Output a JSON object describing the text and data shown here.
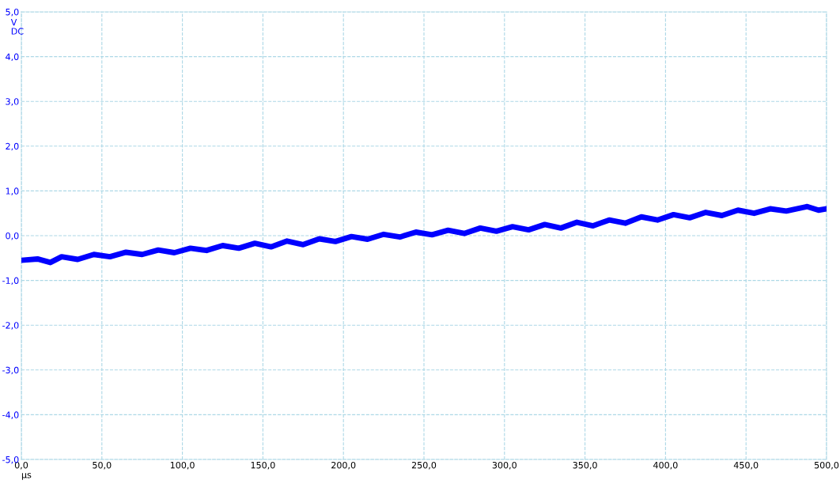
{
  "chart_data": {
    "type": "line",
    "xlabel": "µs",
    "ylabel": "V",
    "annotations": [
      "DC"
    ],
    "x": [
      0,
      10,
      18,
      25,
      35,
      45,
      55,
      65,
      75,
      85,
      95,
      105,
      115,
      125,
      135,
      145,
      155,
      165,
      175,
      185,
      195,
      205,
      215,
      225,
      235,
      245,
      255,
      265,
      275,
      285,
      295,
      305,
      315,
      325,
      335,
      345,
      355,
      365,
      375,
      385,
      395,
      405,
      415,
      425,
      435,
      445,
      455,
      465,
      475,
      488,
      495,
      500
    ],
    "series": [
      {
        "color": "#0000ff",
        "values": [
          -0.55,
          -0.52,
          -0.6,
          -0.47,
          -0.53,
          -0.42,
          -0.47,
          -0.37,
          -0.42,
          -0.32,
          -0.38,
          -0.28,
          -0.33,
          -0.22,
          -0.28,
          -0.17,
          -0.25,
          -0.12,
          -0.2,
          -0.07,
          -0.13,
          -0.02,
          -0.08,
          0.03,
          -0.03,
          0.08,
          0.02,
          0.12,
          0.05,
          0.17,
          0.1,
          0.2,
          0.13,
          0.25,
          0.17,
          0.3,
          0.22,
          0.35,
          0.28,
          0.42,
          0.35,
          0.47,
          0.4,
          0.52,
          0.45,
          0.57,
          0.5,
          0.6,
          0.55,
          0.65,
          0.57,
          0.6
        ]
      }
    ],
    "xlim": [
      0,
      500
    ],
    "ylim": [
      -5,
      5
    ],
    "xticks": [
      {
        "value": 0,
        "label": "0,0"
      },
      {
        "value": 50,
        "label": "50,0"
      },
      {
        "value": 100,
        "label": "100,0"
      },
      {
        "value": 150,
        "label": "150,0"
      },
      {
        "value": 200,
        "label": "200,0"
      },
      {
        "value": 250,
        "label": "250,0"
      },
      {
        "value": 300,
        "label": "300,0"
      },
      {
        "value": 350,
        "label": "350,0"
      },
      {
        "value": 400,
        "label": "400,0"
      },
      {
        "value": 450,
        "label": "450,0"
      },
      {
        "value": 500,
        "label": "500,0"
      }
    ],
    "yticks": [
      {
        "value": -5,
        "label": "-5,0"
      },
      {
        "value": -4,
        "label": "-4,0"
      },
      {
        "value": -3,
        "label": "-3,0"
      },
      {
        "value": -2,
        "label": "-2,0"
      },
      {
        "value": -1,
        "label": "-1,0"
      },
      {
        "value": 0,
        "label": "0,0"
      },
      {
        "value": 1,
        "label": "1,0"
      },
      {
        "value": 2,
        "label": "2,0"
      },
      {
        "value": 3,
        "label": "3,0"
      },
      {
        "value": 4,
        "label": "4,0"
      },
      {
        "value": 5,
        "label": "5,0"
      }
    ],
    "grid": true,
    "line_style": "solid"
  }
}
